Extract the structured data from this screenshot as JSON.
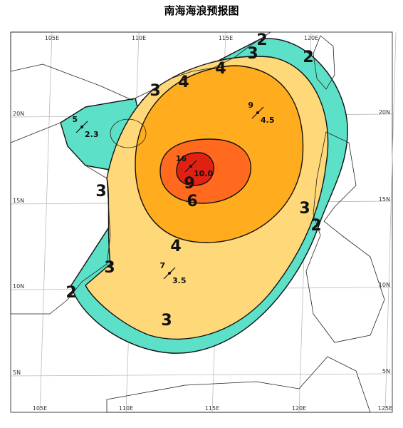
{
  "title": "南海海浪预报图",
  "grid": {
    "top_lon_labels": [
      "105E",
      "110E",
      "115E",
      "120E"
    ],
    "bottom_lon_labels": [
      "105E",
      "110E",
      "115E",
      "120E",
      "125E"
    ],
    "left_lat_labels": [
      "20N",
      "15N",
      "10N",
      "5N"
    ],
    "right_lat_labels": [
      "20N",
      "15N",
      "10N",
      "5N"
    ]
  },
  "contour_labels": [
    "2",
    "3",
    "2",
    "4",
    "4",
    "3",
    "3",
    "9",
    "6",
    "3",
    "2",
    "4",
    "3",
    "2",
    "3"
  ],
  "stations": [
    {
      "period": "5",
      "height": "2.3"
    },
    {
      "period": "9",
      "height": "4.5"
    },
    {
      "period": "16",
      "height": "10.0"
    },
    {
      "period": "7",
      "height": "3.5"
    }
  ]
}
